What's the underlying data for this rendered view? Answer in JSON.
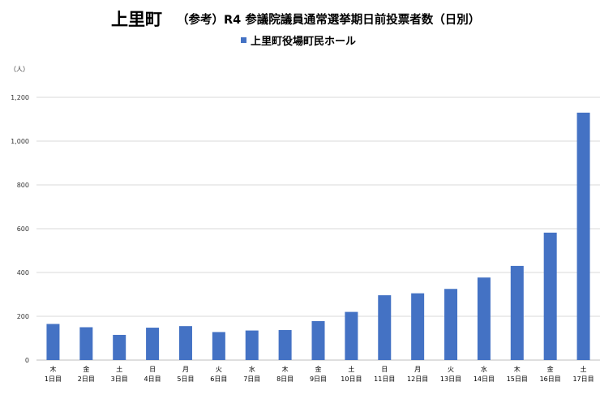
{
  "title": {
    "main": "上里町",
    "subtitle": "（参考）R4 参議院議員通常選挙期日前投票者数（日別）"
  },
  "unit_label": "（人）",
  "colors": {
    "bar": "#4472C4",
    "grid": "#d9d9d9",
    "axis": "#bfbfbf"
  },
  "chart_data": {
    "type": "bar",
    "title": "（参考）R4 参議院議員通常選挙期日前投票者数（日別）",
    "xlabel": "",
    "ylabel": "（人）",
    "ylim": [
      0,
      1200
    ],
    "yticks": [
      "0",
      "200",
      "400",
      "600",
      "800",
      "1,000",
      "1,200"
    ],
    "ytick_values": [
      0,
      200,
      400,
      600,
      800,
      1000,
      1200
    ],
    "grid": true,
    "legend_position": "top-center",
    "categories": [
      {
        "weekday": "木",
        "day": "1日目"
      },
      {
        "weekday": "金",
        "day": "2日目"
      },
      {
        "weekday": "土",
        "day": "3日目"
      },
      {
        "weekday": "日",
        "day": "4日目"
      },
      {
        "weekday": "月",
        "day": "5日目"
      },
      {
        "weekday": "火",
        "day": "6日目"
      },
      {
        "weekday": "水",
        "day": "7日目"
      },
      {
        "weekday": "木",
        "day": "8日目"
      },
      {
        "weekday": "金",
        "day": "9日目"
      },
      {
        "weekday": "土",
        "day": "10日目"
      },
      {
        "weekday": "日",
        "day": "11日目"
      },
      {
        "weekday": "月",
        "day": "12日目"
      },
      {
        "weekday": "火",
        "day": "13日目"
      },
      {
        "weekday": "水",
        "day": "14日目"
      },
      {
        "weekday": "木",
        "day": "15日目"
      },
      {
        "weekday": "金",
        "day": "16日目"
      },
      {
        "weekday": "土",
        "day": "17日目"
      }
    ],
    "series": [
      {
        "name": "上里町役場町民ホール",
        "values": [
          165,
          150,
          115,
          148,
          155,
          128,
          135,
          137,
          178,
          220,
          296,
          305,
          325,
          377,
          430,
          582,
          1130
        ]
      }
    ]
  }
}
